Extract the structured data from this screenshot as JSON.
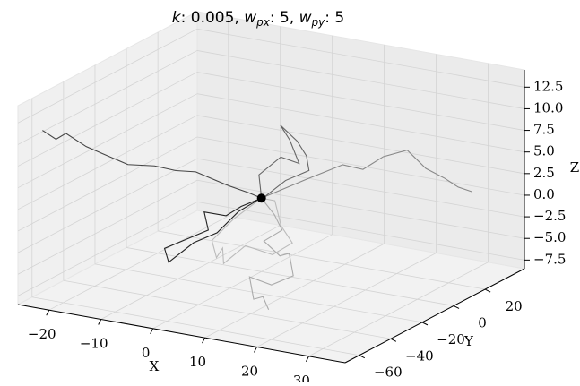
{
  "chart_data": {
    "type": "line3d",
    "title": [
      "k",
      ": 0.005,  ",
      "w",
      "px",
      ": 5,  ",
      "w",
      "py",
      ": 5"
    ],
    "xlabel": "X",
    "ylabel": "Y",
    "zlabel": "Z",
    "xlim": [
      -26,
      37
    ],
    "ylim": [
      -69,
      45
    ],
    "zlim": [
      -8.5,
      14.5
    ],
    "xticks": [
      {
        "value": -20,
        "label": "−20"
      },
      {
        "value": -10,
        "label": "−10"
      },
      0,
      10,
      20,
      30
    ],
    "yticks": [
      {
        "value": -60,
        "label": "−60"
      },
      {
        "value": -40,
        "label": "−40"
      },
      {
        "value": -20,
        "label": "−20"
      },
      0,
      20
    ],
    "zticks": [
      {
        "value": -7.5,
        "label": "−7.5"
      },
      {
        "value": -5,
        "label": "−5.0"
      },
      {
        "value": -2.5,
        "label": "−2.5"
      },
      {
        "value": 0,
        "label": "0.0"
      },
      2.5,
      {
        "value": 5,
        "label": "5.0"
      },
      7.5,
      {
        "value": 10,
        "label": "10.0"
      },
      12.5
    ],
    "grid": true,
    "series": [
      {
        "color": "#444444",
        "x": [
          -24,
          -22,
          -21,
          -18,
          -16,
          -13,
          -10,
          -8,
          -6,
          -4,
          -3,
          -1,
          0
        ],
        "y": [
          -60,
          -58,
          -55,
          -52,
          -48,
          -42,
          -35,
          -28,
          -22,
          -15,
          -10,
          -5,
          0
        ],
        "z": [
          11,
          10,
          10.5,
          9,
          8,
          6.5,
          6,
          5,
          4.5,
          3,
          2,
          1,
          0
        ]
      },
      {
        "color": "#888888",
        "x": [
          0,
          3,
          6,
          9,
          12,
          15,
          18,
          22,
          25,
          28,
          30,
          32
        ],
        "y": [
          0,
          4,
          8,
          10,
          12,
          15,
          18,
          20,
          22,
          24,
          26,
          28
        ],
        "z": [
          0,
          1,
          2,
          3,
          4,
          3.5,
          5,
          6,
          4,
          3,
          2,
          1.5
        ]
      },
      {
        "color": "#222222",
        "x": [
          0,
          -3,
          -5,
          -8,
          -6,
          -9,
          -12,
          -10,
          -7,
          -4,
          -2,
          0
        ],
        "y": [
          0,
          -3,
          -6,
          -10,
          -14,
          -18,
          -22,
          -26,
          -20,
          -15,
          -8,
          -2
        ],
        "z": [
          0,
          -1,
          -2,
          -1.5,
          -3,
          -4,
          -5,
          -6,
          -4,
          -3,
          -1,
          0
        ]
      },
      {
        "color": "#aaaaaa",
        "x": [
          0,
          4,
          7,
          5,
          9,
          12,
          14,
          11,
          8,
          10,
          13,
          15
        ],
        "y": [
          0,
          -5,
          -10,
          -15,
          -18,
          -22,
          -26,
          -30,
          -34,
          -38,
          -42,
          -45
        ],
        "z": [
          0,
          -1,
          -2,
          -3,
          -4,
          -3,
          -5,
          -6,
          -5,
          -7,
          -6,
          -7
        ]
      },
      {
        "color": "#666666",
        "x": [
          0,
          -2,
          1,
          3,
          0,
          -3,
          -1,
          2,
          4,
          1,
          -2,
          0
        ],
        "y": [
          0,
          5,
          9,
          14,
          18,
          22,
          26,
          22,
          17,
          12,
          6,
          0
        ],
        "z": [
          0,
          2,
          4,
          3,
          5,
          6,
          4,
          3,
          2,
          1,
          -1,
          0
        ]
      },
      {
        "color": "#bbbbbb",
        "x": [
          0,
          5,
          8,
          12,
          10,
          6,
          3,
          1,
          -2,
          -5,
          -3,
          0
        ],
        "y": [
          0,
          -8,
          -14,
          -20,
          -26,
          -30,
          -34,
          -28,
          -22,
          -15,
          -8,
          0
        ],
        "z": [
          0,
          1,
          -1,
          -2,
          -3,
          -2,
          -4,
          -3,
          -5,
          -4,
          -2,
          0
        ]
      }
    ],
    "marker": {
      "x": 0,
      "y": 0,
      "z": 0,
      "color": "#000000"
    }
  }
}
